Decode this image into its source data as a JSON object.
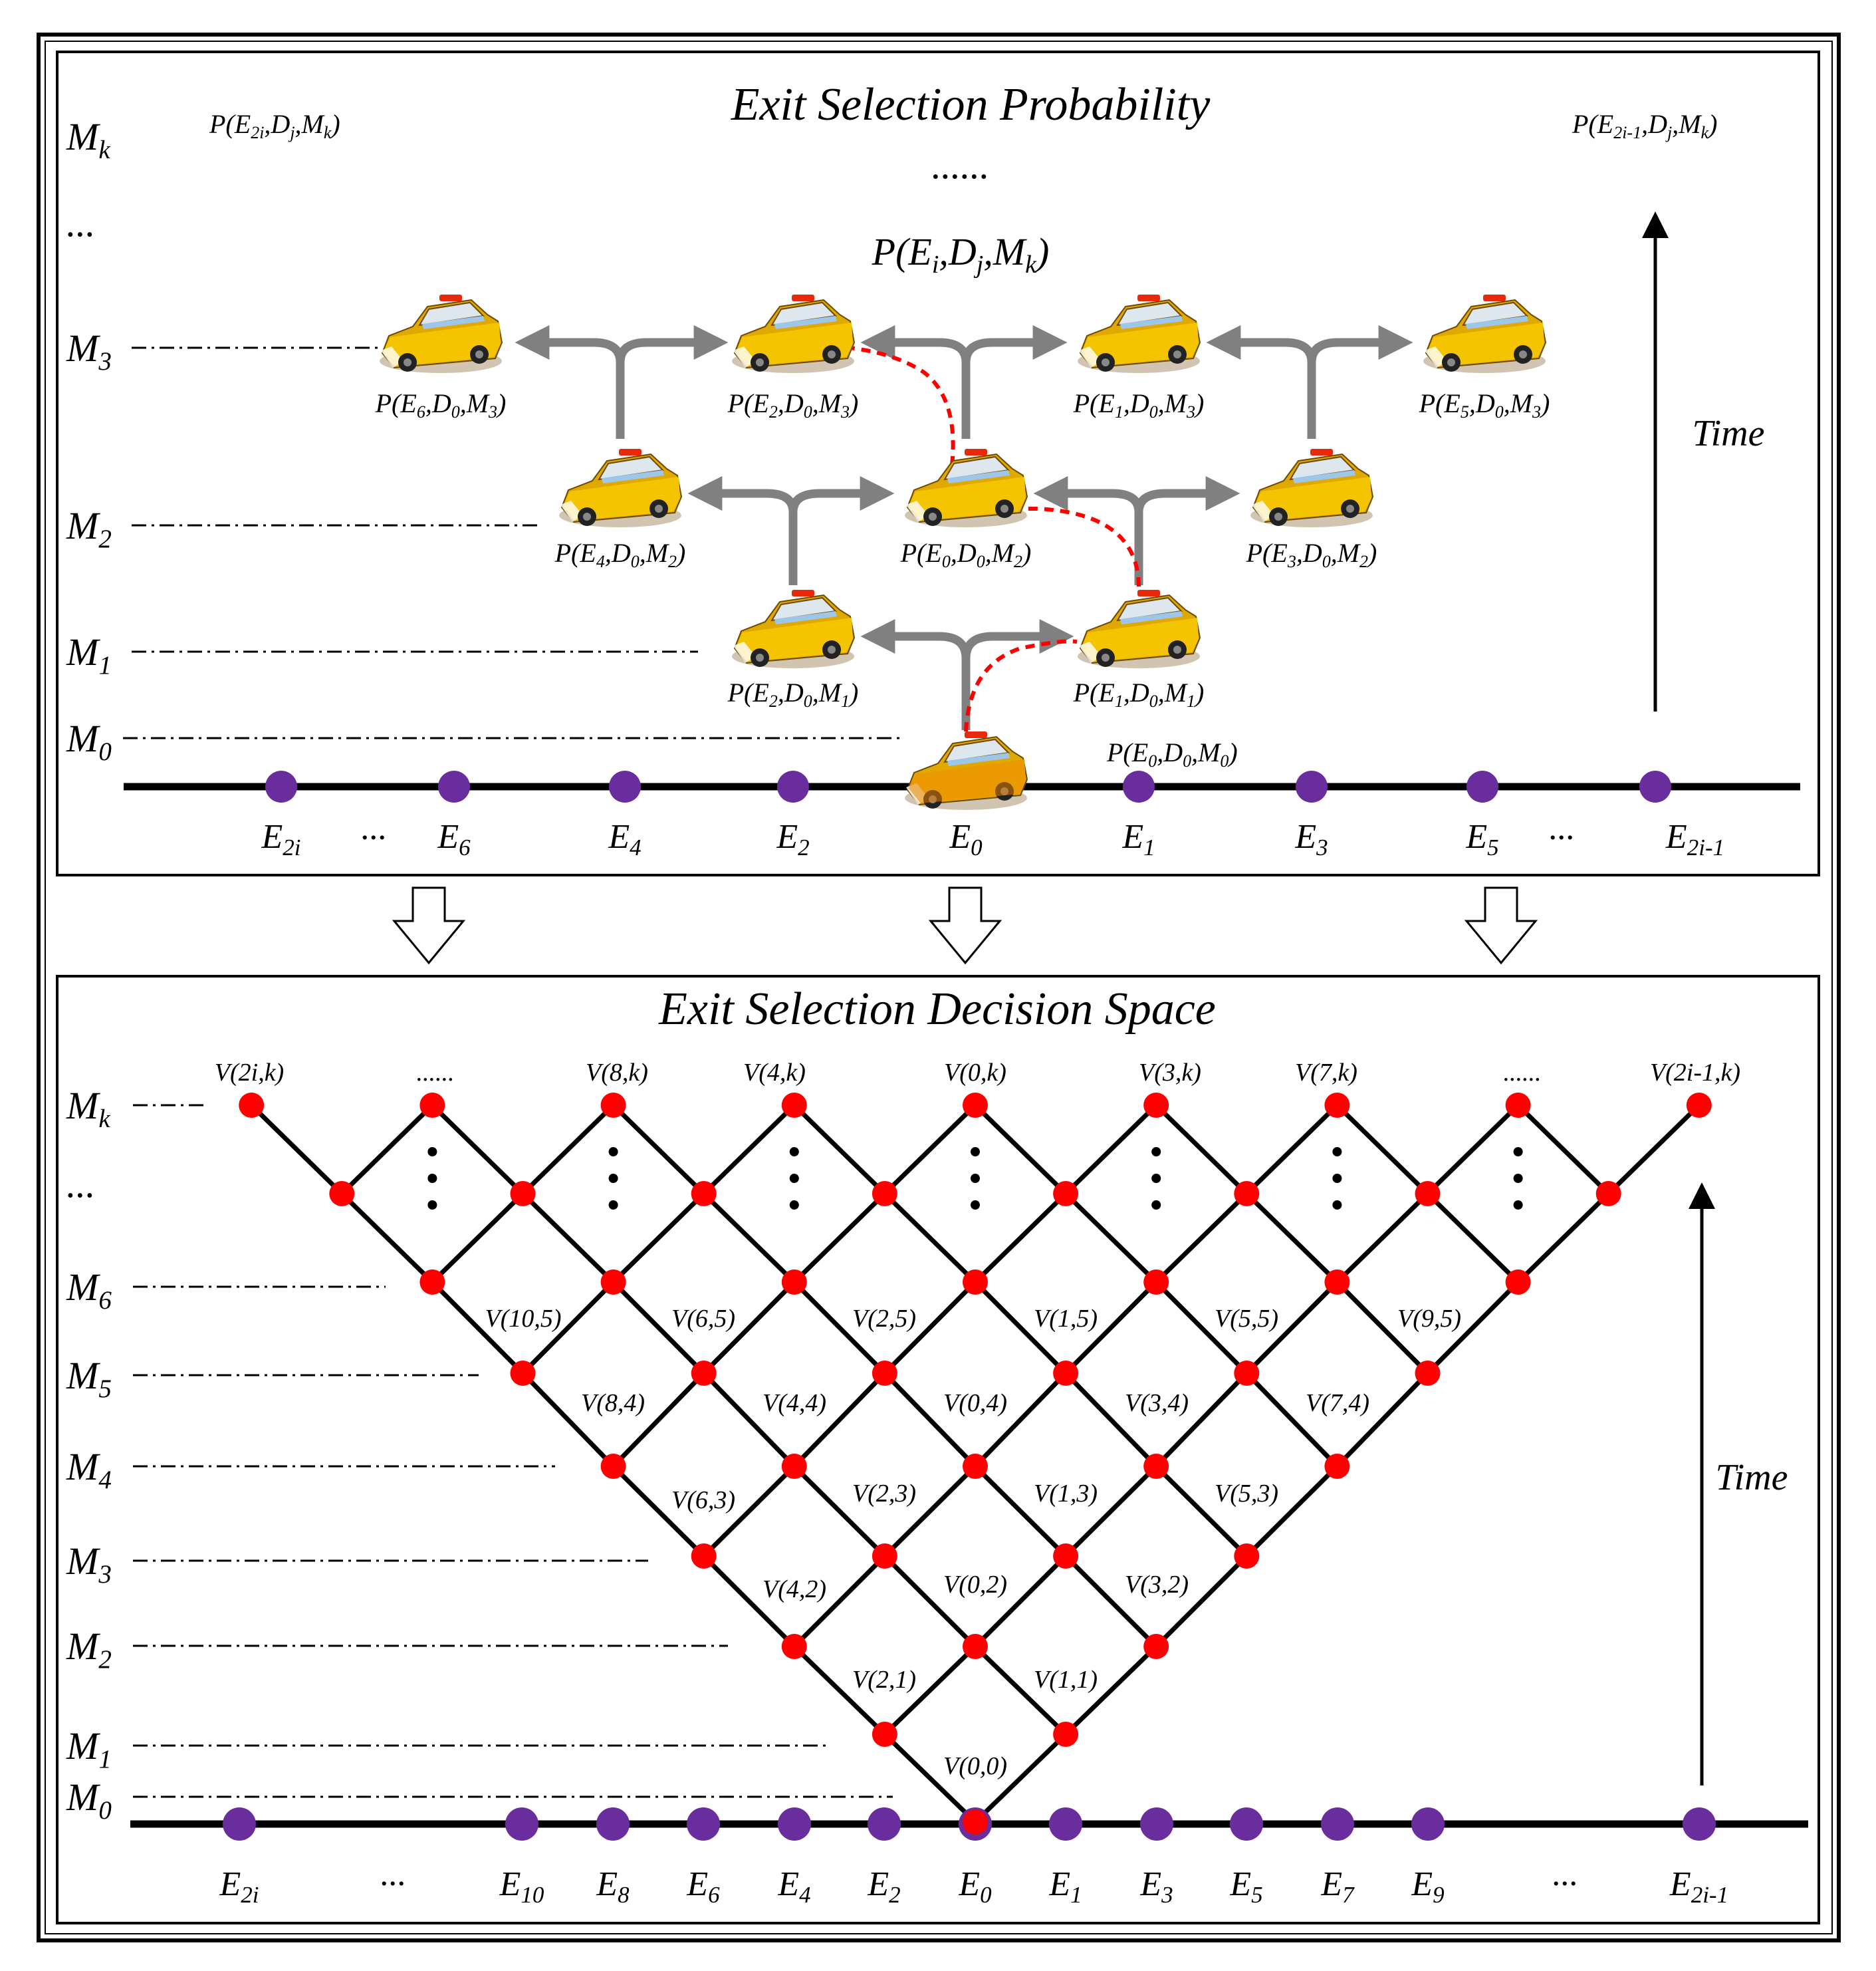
{
  "top": {
    "title": "Exit Selection Probability",
    "levels": [
      "M_k",
      "...",
      "M_3",
      "M_2",
      "M_1",
      "M_0"
    ],
    "corner_left": "P(E_2i,D_j,M_k)",
    "corner_right": "P(E_2i-1,D_j,M_k)",
    "middle_dots": "......",
    "general_label": "P(E_i,D_j,M_k)",
    "cars": [
      {
        "label": "P(E_6,D_0,M_3)"
      },
      {
        "label": "P(E_2,D_0,M_3)"
      },
      {
        "label": "P(E_1,D_0,M_3)"
      },
      {
        "label": "P(E_5,D_0,M_3)"
      },
      {
        "label": "P(E_4,D_0,M_2)"
      },
      {
        "label": "P(E_0,D_0,M_2)"
      },
      {
        "label": "P(E_3,D_0,M_2)"
      },
      {
        "label": "P(E_2,D_0,M_1)"
      },
      {
        "label": "P(E_1,D_0,M_1)"
      },
      {
        "label": "P(E_0,D_0,M_0)"
      }
    ],
    "exits": [
      "E_2i",
      "...",
      "E_6",
      "E_4",
      "E_2",
      "E_0",
      "E_1",
      "E_3",
      "E_5",
      "...",
      "E_2i-1"
    ],
    "time_label": "Time"
  },
  "bottom": {
    "title": "Exit Selection Decision Space",
    "levels": [
      "M_k",
      "...",
      "M_6",
      "M_5",
      "M_4",
      "M_3",
      "M_2",
      "M_1",
      "M_0"
    ],
    "top_labels": [
      "V(2i,k)",
      "......",
      "V(8,k)",
      "V(4,k)",
      "V(0,k)",
      "V(3,k)",
      "V(7,k)",
      "......",
      "V(2i-1,k)"
    ],
    "node_labels": [
      "V(10,5)",
      "V(6,5)",
      "V(2,5)",
      "V(1,5)",
      "V(5,5)",
      "V(9,5)",
      "V(8,4)",
      "V(4,4)",
      "V(0,4)",
      "V(3,4)",
      "V(7,4)",
      "V(6,3)",
      "V(2,3)",
      "V(1,3)",
      "V(5,3)",
      "V(4,2)",
      "V(0,2)",
      "V(3,2)",
      "V(2,1)",
      "V(1,1)",
      "V(0,0)"
    ],
    "exits": [
      "E_2i",
      "...",
      "E_10",
      "E_8",
      "E_6",
      "E_4",
      "E_2",
      "E_0",
      "E_1",
      "E_3",
      "E_5",
      "E_7",
      "E_9",
      "...",
      "E_2i-1"
    ],
    "time_label": "Time"
  },
  "colors": {
    "exit_node": "#6a2d9e",
    "grid_node": "#ff0000",
    "path": "#ff0000",
    "arrow_gray": "#808080",
    "car_body": "#f5b800",
    "car_body_dark": "#e07800"
  }
}
